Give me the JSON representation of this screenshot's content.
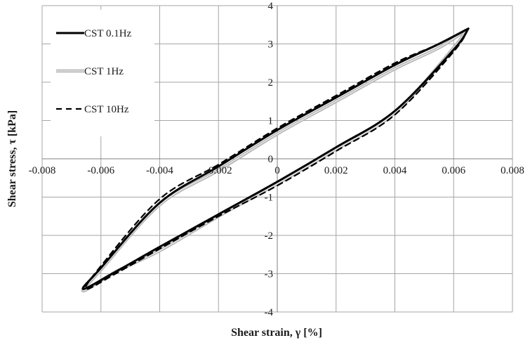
{
  "chart_data": {
    "type": "line",
    "title": "",
    "xlabel": "Shear strain, γ [%]",
    "ylabel": "Shear stress, τ [kPa]",
    "xlim": [
      -0.008,
      0.008
    ],
    "ylim": [
      -4,
      4
    ],
    "x_ticks": [
      -0.008,
      -0.006,
      -0.004,
      -0.002,
      0,
      0.002,
      0.004,
      0.006,
      0.008
    ],
    "x_tick_labels": [
      "-0.008",
      "-0.006",
      "-0.004",
      "-0.002",
      "0",
      "0.002",
      "0.004",
      "0.006",
      "0.008"
    ],
    "y_ticks": [
      -4,
      -3,
      -2,
      -1,
      0,
      1,
      2,
      3,
      4
    ],
    "y_tick_labels": [
      "-4",
      "-3",
      "-2",
      "-1",
      "0",
      "1",
      "2",
      "3",
      "4"
    ],
    "grid": true,
    "legend_position": "top-left",
    "series": [
      {
        "name": "CST 0.1Hz",
        "color": "#000000",
        "line_style": "solid-thick",
        "x": [
          0.0065,
          0.0055,
          0.004,
          0.002,
          0.0,
          -0.002,
          -0.004,
          -0.006,
          -0.0066,
          -0.0055,
          -0.004,
          -0.002,
          0.0,
          0.002,
          0.004,
          0.006,
          0.0065
        ],
        "y": [
          3.4,
          3.0,
          2.45,
          1.6,
          0.75,
          -0.2,
          -1.15,
          -2.85,
          -3.4,
          -2.95,
          -2.3,
          -1.45,
          -0.6,
          0.3,
          1.25,
          2.85,
          3.4
        ]
      },
      {
        "name": "CST 1Hz",
        "color": "#b3b3b3",
        "line_style": "double-grey",
        "x": [
          0.0064,
          0.0055,
          0.004,
          0.002,
          0.0,
          -0.002,
          -0.004,
          -0.006,
          -0.0066,
          -0.0055,
          -0.004,
          -0.002,
          0.0,
          0.002,
          0.004,
          0.006,
          0.0064
        ],
        "y": [
          3.35,
          2.9,
          2.35,
          1.5,
          0.65,
          -0.3,
          -1.2,
          -2.9,
          -3.45,
          -2.95,
          -2.4,
          -1.5,
          -0.65,
          0.25,
          1.2,
          2.9,
          3.35
        ]
      },
      {
        "name": "CST 10Hz",
        "color": "#000000",
        "line_style": "dashed",
        "x": [
          0.0065,
          0.0055,
          0.004,
          0.002,
          0.0,
          -0.002,
          -0.004,
          -0.006,
          -0.0065,
          -0.0055,
          -0.004,
          -0.002,
          0.0,
          0.002,
          0.004,
          0.006,
          0.0065
        ],
        "y": [
          3.4,
          3.0,
          2.5,
          1.65,
          0.8,
          -0.15,
          -1.05,
          -2.8,
          -3.4,
          -3.0,
          -2.35,
          -1.5,
          -0.7,
          0.2,
          1.15,
          2.8,
          3.4
        ]
      }
    ]
  }
}
